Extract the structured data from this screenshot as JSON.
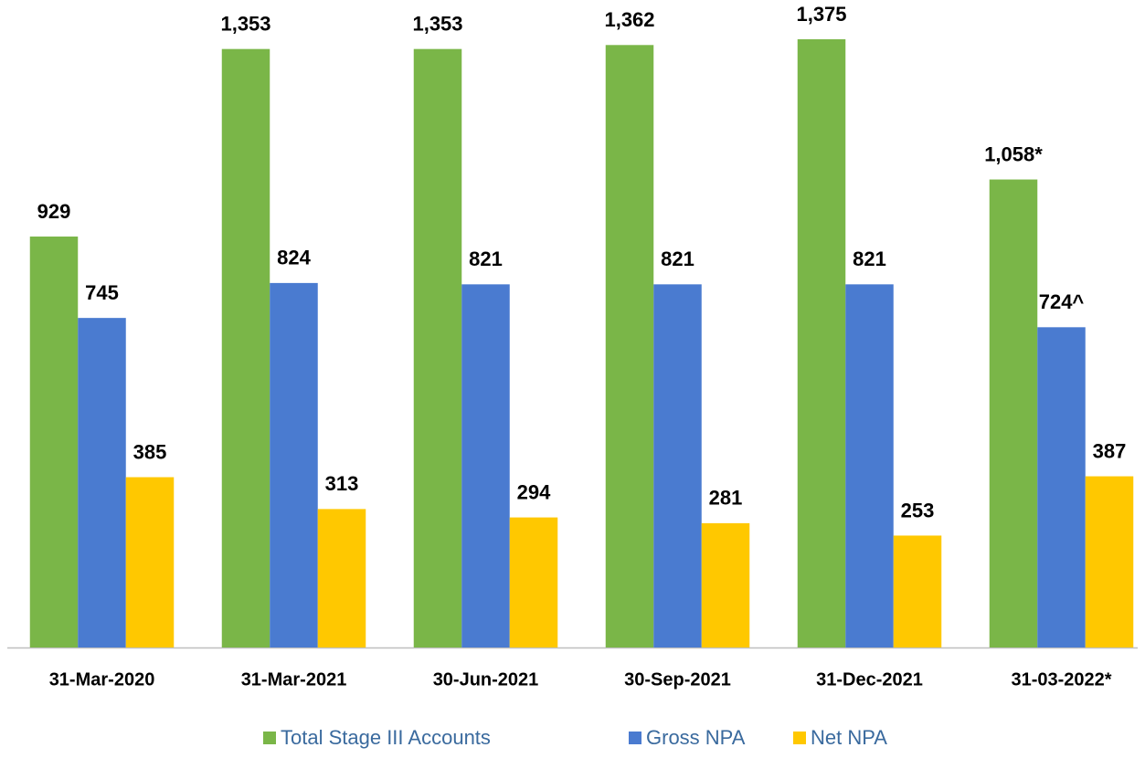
{
  "chart_data": {
    "type": "bar",
    "categories": [
      "31-Mar-2020",
      "31-Mar-2021",
      "30-Jun-2021",
      "30-Sep-2021",
      "31-Dec-2021",
      "31-03-2022*"
    ],
    "series": [
      {
        "name": "Total Stage III Accounts",
        "color": "#7ab648",
        "values": [
          929,
          1353,
          1353,
          1362,
          1375,
          1058
        ],
        "value_labels": [
          "929",
          "1,353",
          "1,353",
          "1,362",
          "1,375",
          "1,058*"
        ]
      },
      {
        "name": "Gross NPA",
        "color": "#4a7bd0",
        "values": [
          745,
          824,
          821,
          821,
          821,
          724
        ],
        "value_labels": [
          "745",
          "824",
          "821",
          "821",
          "821",
          "724^"
        ]
      },
      {
        "name": "Net NPA",
        "color": "#ffc800",
        "values": [
          385,
          313,
          294,
          281,
          253,
          387
        ],
        "value_labels": [
          "385",
          "313",
          "294",
          "281",
          "253",
          "387"
        ]
      }
    ],
    "legend": "bottom"
  }
}
